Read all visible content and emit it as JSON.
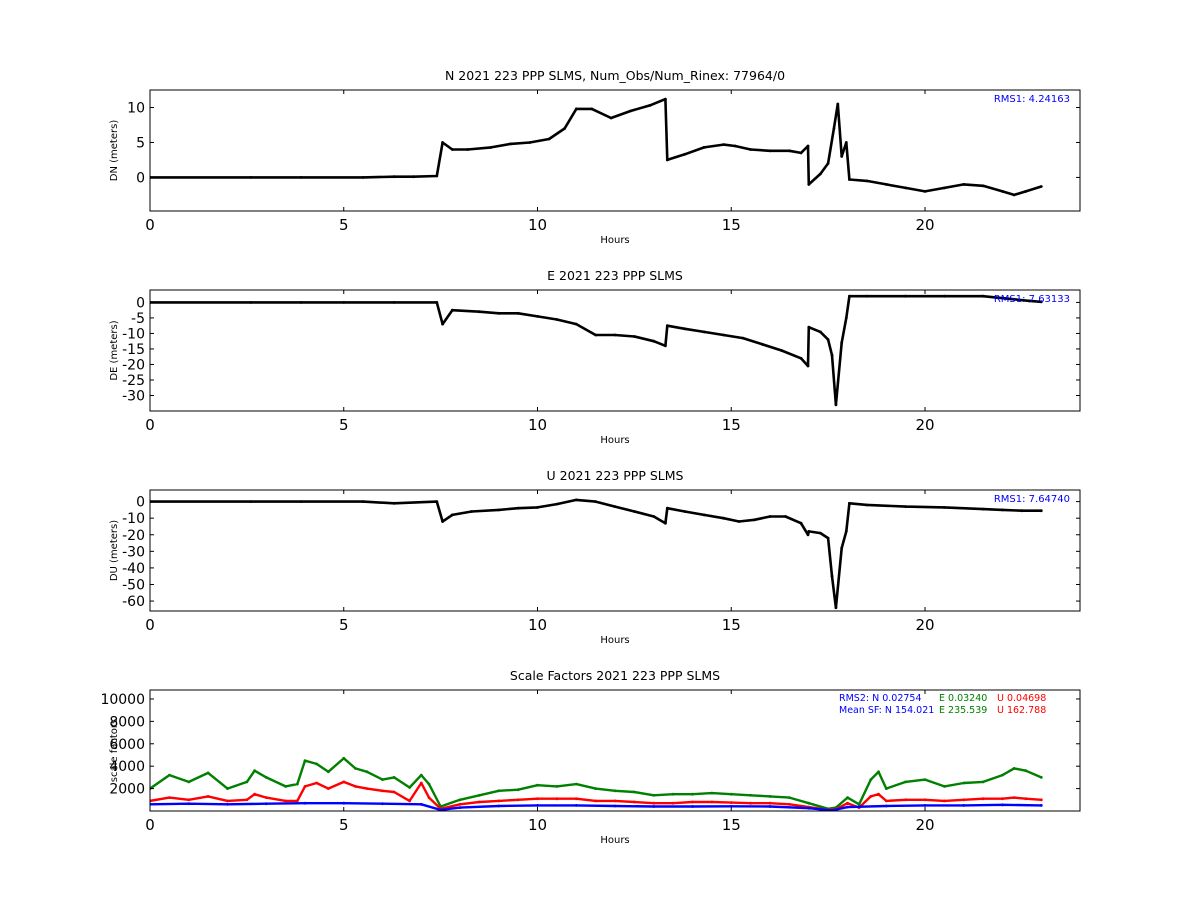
{
  "figure": {
    "background": "#ffffff"
  },
  "chart_data": [
    {
      "type": "scatter",
      "title": "N 2021 223 PPP  SLMS, Num_Obs/Num_Rinex: 77964/0",
      "xlabel": "Hours",
      "ylabel": "DN (meters)",
      "xlim": [
        0,
        24
      ],
      "ylim": [
        -4.8,
        12.5
      ],
      "xticks": [
        0,
        5,
        10,
        15,
        20
      ],
      "yticks": [
        0,
        5,
        10
      ],
      "grid": false,
      "annotation": "RMS1:  4.24163",
      "annotation_color": "#0000ff",
      "series": [
        {
          "color": "#000000",
          "x": [
            0,
            2.6,
            3.9,
            5.5,
            6.3,
            6.8,
            7.4,
            7.55,
            7.8,
            8.2,
            8.8,
            9.3,
            9.8,
            10.3,
            10.7,
            11.0,
            11.4,
            11.9,
            12.4,
            12.9,
            13.3,
            13.35,
            13.8,
            14.3,
            14.8,
            15.1,
            15.5,
            16.0,
            16.5,
            16.8,
            16.98,
            17.0,
            17.3,
            17.5,
            17.65,
            17.75,
            17.85,
            17.97,
            18.05,
            18.5,
            19.0,
            19.5,
            20.0,
            20.5,
            21.0,
            21.5,
            22.0,
            22.3,
            22.6,
            23.0
          ],
          "y": [
            0,
            0,
            0,
            0,
            0.1,
            0.1,
            0.2,
            5.0,
            4.0,
            4.0,
            4.3,
            4.8,
            5.0,
            5.5,
            7.0,
            9.8,
            9.8,
            8.5,
            9.5,
            10.3,
            11.2,
            2.5,
            3.3,
            4.3,
            4.7,
            4.5,
            4.0,
            3.8,
            3.8,
            3.5,
            4.5,
            -1.0,
            0.5,
            2.0,
            7.0,
            10.5,
            3.0,
            5.0,
            -0.3,
            -0.5,
            -1.0,
            -1.5,
            -2.0,
            -1.5,
            -1.0,
            -1.2,
            -2.0,
            -2.5,
            -2.0,
            -1.3
          ]
        }
      ]
    },
    {
      "type": "scatter",
      "title": "E 2021 223 PPP  SLMS",
      "xlabel": "Hours",
      "ylabel": "DE (meters)",
      "xlim": [
        0,
        24
      ],
      "ylim": [
        -35,
        4
      ],
      "xticks": [
        0,
        5,
        10,
        15,
        20
      ],
      "yticks": [
        0,
        -5,
        -10,
        -15,
        -20,
        -25,
        -30
      ],
      "grid": false,
      "annotation": "RMS1:  7.63133",
      "annotation_color": "#0000ff",
      "series": [
        {
          "color": "#000000",
          "x": [
            0,
            2.6,
            3.9,
            5.0,
            6.3,
            7.4,
            7.55,
            7.8,
            8.5,
            9.0,
            9.5,
            10.0,
            10.5,
            11.0,
            11.5,
            12.0,
            12.5,
            13.0,
            13.3,
            13.35,
            13.8,
            14.3,
            14.8,
            15.3,
            15.8,
            16.3,
            16.8,
            16.98,
            17.0,
            17.3,
            17.5,
            17.6,
            17.7,
            17.85,
            17.97,
            18.05,
            18.5,
            19.5,
            20.5,
            21.5,
            22.3,
            22.7,
            23.0
          ],
          "y": [
            0,
            0,
            0,
            0,
            0,
            0,
            -7.0,
            -2.5,
            -3.0,
            -3.5,
            -3.5,
            -4.5,
            -5.5,
            -7.0,
            -10.5,
            -10.5,
            -11.0,
            -12.5,
            -14.0,
            -7.5,
            -8.5,
            -9.5,
            -10.5,
            -11.5,
            -13.5,
            -15.5,
            -18.0,
            -20.5,
            -8.0,
            -9.5,
            -12.0,
            -17.0,
            -33.0,
            -13.0,
            -5.0,
            2.0,
            2.0,
            2.0,
            2.0,
            2.0,
            1.0,
            0.5,
            0.2
          ]
        }
      ]
    },
    {
      "type": "scatter",
      "title": "U 2021 223 PPP  SLMS",
      "xlabel": "Hours",
      "ylabel": "DU (meters)",
      "xlim": [
        0,
        24
      ],
      "ylim": [
        -66,
        7
      ],
      "xticks": [
        0,
        5,
        10,
        15,
        20
      ],
      "yticks": [
        0,
        -10,
        -20,
        -30,
        -40,
        -50,
        -60
      ],
      "grid": false,
      "annotation": "RMS1:  7.64740",
      "annotation_color": "#0000ff",
      "series": [
        {
          "color": "#000000",
          "x": [
            0,
            2.6,
            3.9,
            5.5,
            6.3,
            7.4,
            7.55,
            7.8,
            8.3,
            9.0,
            9.5,
            10.0,
            10.5,
            11.0,
            11.5,
            12.0,
            12.5,
            13.0,
            13.3,
            13.35,
            13.8,
            14.3,
            14.8,
            15.2,
            15.6,
            16.0,
            16.4,
            16.8,
            16.98,
            17.0,
            17.3,
            17.5,
            17.6,
            17.7,
            17.85,
            17.97,
            18.05,
            18.5,
            19.5,
            20.5,
            21.5,
            22.0,
            22.5,
            23.0
          ],
          "y": [
            0,
            0,
            0,
            0,
            -1,
            0,
            -12,
            -8,
            -6,
            -5,
            -4,
            -3.5,
            -1.5,
            1.0,
            0,
            -3,
            -6,
            -9,
            -13,
            -4,
            -6,
            -8,
            -10,
            -12,
            -11,
            -9,
            -9,
            -13,
            -20,
            -18,
            -19,
            -22,
            -45,
            -64,
            -28,
            -18,
            -1,
            -2,
            -3,
            -3.5,
            -4.5,
            -5,
            -5.5,
            -5.5
          ]
        }
      ]
    },
    {
      "type": "scatter",
      "title": "Scale Factors 2021 223 PPP  SLMS",
      "xlabel": "Hours",
      "ylabel": "scale factors",
      "xlim": [
        0,
        24
      ],
      "ylim": [
        0,
        10800
      ],
      "xticks": [
        0,
        5,
        10,
        15,
        20
      ],
      "yticks": [
        2000,
        4000,
        6000,
        8000,
        10000
      ],
      "grid": false,
      "annotations": [
        {
          "text": "RMS2: N  0.02754",
          "color": "#0000ff"
        },
        {
          "text": "E  0.03240",
          "color": "#008000"
        },
        {
          "text": "U  0.04698",
          "color": "#ff0000"
        },
        {
          "text": "Mean SF: N 154.021",
          "color": "#0000ff"
        },
        {
          "text": "E 235.539",
          "color": "#008000"
        },
        {
          "text": "U 162.788",
          "color": "#ff0000"
        }
      ],
      "series": [
        {
          "color": "#008000",
          "x": [
            0,
            0.5,
            1.0,
            1.5,
            2.0,
            2.5,
            2.7,
            3.0,
            3.5,
            3.8,
            4.0,
            4.3,
            4.6,
            5.0,
            5.3,
            5.6,
            6.0,
            6.3,
            6.7,
            7.0,
            7.2,
            7.5,
            8.0,
            8.5,
            9.0,
            9.5,
            10.0,
            10.5,
            11.0,
            11.5,
            12.0,
            12.5,
            13.0,
            13.5,
            14.0,
            14.5,
            15.0,
            15.5,
            16.0,
            16.5,
            17.0,
            17.5,
            17.7,
            18.0,
            18.3,
            18.6,
            18.8,
            19.0,
            19.5,
            20.0,
            20.5,
            21.0,
            21.5,
            22.0,
            22.3,
            22.6,
            23.0
          ],
          "y": [
            2000,
            3200,
            2600,
            3400,
            2000,
            2600,
            3600,
            3000,
            2200,
            2400,
            4500,
            4200,
            3500,
            4700,
            3800,
            3500,
            2800,
            3000,
            2100,
            3200,
            2400,
            400,
            1000,
            1400,
            1800,
            1900,
            2300,
            2200,
            2400,
            2000,
            1800,
            1700,
            1400,
            1500,
            1500,
            1600,
            1500,
            1400,
            1300,
            1200,
            700,
            200,
            300,
            1200,
            600,
            2800,
            3500,
            2000,
            2600,
            2800,
            2200,
            2500,
            2600,
            3200,
            3800,
            3600,
            3000
          ]
        },
        {
          "color": "#ff0000",
          "x": [
            0,
            0.5,
            1.0,
            1.5,
            2.0,
            2.5,
            2.7,
            3.0,
            3.5,
            3.8,
            4.0,
            4.3,
            4.6,
            5.0,
            5.3,
            5.6,
            6.0,
            6.3,
            6.7,
            7.0,
            7.2,
            7.5,
            8.0,
            8.5,
            9.0,
            9.5,
            10.0,
            10.5,
            11.0,
            11.5,
            12.0,
            12.5,
            13.0,
            13.5,
            14.0,
            14.5,
            15.0,
            15.5,
            16.0,
            16.5,
            17.0,
            17.5,
            17.7,
            18.0,
            18.3,
            18.6,
            18.8,
            19.0,
            19.5,
            20.0,
            20.5,
            21.0,
            21.5,
            22.0,
            22.3,
            22.6,
            23.0
          ],
          "y": [
            900,
            1200,
            1000,
            1300,
            900,
            1000,
            1500,
            1200,
            900,
            900,
            2200,
            2500,
            2000,
            2600,
            2200,
            2000,
            1800,
            1700,
            900,
            2500,
            1200,
            200,
            600,
            800,
            900,
            1000,
            1100,
            1100,
            1100,
            900,
            900,
            800,
            700,
            700,
            800,
            800,
            750,
            700,
            700,
            600,
            350,
            100,
            150,
            700,
            300,
            1300,
            1500,
            900,
            1000,
            1000,
            900,
            1000,
            1100,
            1100,
            1200,
            1100,
            1000
          ]
        },
        {
          "color": "#0000ff",
          "x": [
            0,
            1,
            2,
            3,
            4,
            5,
            6,
            7,
            7.5,
            8,
            9,
            10,
            11,
            12,
            13,
            14,
            15,
            16,
            17,
            17.6,
            18,
            19,
            20,
            21,
            22,
            23
          ],
          "y": [
            600,
            650,
            600,
            650,
            700,
            700,
            650,
            600,
            100,
            300,
            450,
            500,
            500,
            450,
            400,
            400,
            420,
            400,
            250,
            50,
            350,
            450,
            500,
            500,
            550,
            500
          ]
        }
      ]
    }
  ]
}
